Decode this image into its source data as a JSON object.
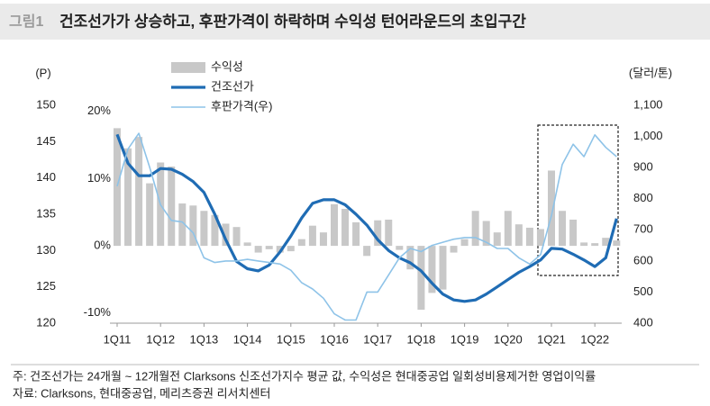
{
  "figure_label": "그림1",
  "chart_data": {
    "type": "combo",
    "title": "건조선가가 상승하고, 후판가격이 하락하며 수익성 턴어라운드의 초입구간",
    "ylabel": "(P)",
    "y2label": "(달러/톤)",
    "categories": [
      "1Q11",
      null,
      null,
      null,
      "1Q12",
      null,
      null,
      null,
      "1Q13",
      null,
      null,
      null,
      "1Q14",
      null,
      null,
      null,
      "1Q15",
      null,
      null,
      null,
      "1Q16",
      null,
      null,
      null,
      "1Q17",
      null,
      null,
      null,
      "1Q18",
      null,
      null,
      null,
      "1Q19",
      null,
      null,
      null,
      "1Q20",
      null,
      null,
      null,
      "1Q21",
      null,
      null,
      null,
      "1Q22",
      null,
      null
    ],
    "ylim": [
      120,
      150
    ],
    "yticks": [
      120,
      125,
      130,
      135,
      140,
      145,
      150
    ],
    "y2lim": [
      400,
      1100
    ],
    "y2ticks": [
      400,
      500,
      600,
      700,
      800,
      900,
      {
        "value": 1000,
        "label": "1,000"
      },
      {
        "value": 1100,
        "label": "1,100"
      }
    ],
    "y3lim": [
      -11.5,
      20.9
    ],
    "y3ticks": [
      {
        "value": -10,
        "label": "-10%"
      },
      {
        "value": 0,
        "label": "0%"
      },
      {
        "value": 10,
        "label": "10%"
      },
      {
        "value": 20,
        "label": "20%"
      }
    ],
    "series": [
      {
        "name": "수익성",
        "type": "bar",
        "axis": "y3",
        "color": "#c8c8c8",
        "values": [
          17.5,
          14.5,
          16.2,
          9.3,
          12.4,
          11.8,
          6.3,
          6.0,
          5.2,
          4.6,
          3.3,
          2.8,
          0.5,
          -1,
          -0.5,
          -1,
          -0.8,
          1,
          3,
          2,
          6.2,
          5.5,
          3.5,
          -1.5,
          3.8,
          3.9,
          -0.6,
          -3.5,
          -9.5,
          -7,
          -6.5,
          -1,
          1,
          5.2,
          3.7,
          2,
          5.2,
          3.2,
          2.7,
          2.5,
          11.2,
          5.2,
          3.9,
          0.5,
          0.4,
          1.2,
          0.8
        ]
      },
      {
        "name": "건조선가",
        "type": "line",
        "axis": "y",
        "color": "#1f6cb4",
        "values": [
          146,
          142,
          140.3,
          140.3,
          141.3,
          141.2,
          140.5,
          139.5,
          138,
          135,
          131.5,
          128.5,
          127.5,
          127.2,
          128,
          129.8,
          132,
          134.5,
          136.5,
          137,
          137,
          136.3,
          135,
          133.5,
          131.5,
          130,
          129,
          128.3,
          127.2,
          125.5,
          124,
          123.2,
          123,
          123.2,
          124,
          125,
          126,
          127,
          127.8,
          128.7,
          130.3,
          130.2,
          129.5,
          128.7,
          127.8,
          129,
          134.4
        ]
      },
      {
        "name": "후판가격(우)",
        "type": "line",
        "axis": "y2",
        "color": "#8ec3e8",
        "values": [
          840,
          960,
          1010,
          900,
          780,
          730,
          725,
          690,
          610,
          595,
          600,
          600,
          605,
          600,
          595,
          590,
          570,
          530,
          510,
          480,
          430,
          410,
          410,
          500,
          500,
          555,
          610,
          640,
          630,
          650,
          660,
          670,
          675,
          675,
          660,
          640,
          640,
          610,
          590,
          620,
          745,
          910,
          975,
          935,
          1005,
          965,
          935
        ]
      }
    ]
  },
  "notes": [
    "주: 건조선가는 24개월 ~ 12개월전 Clarksons 신조선가지수 평균 값, 수익성은 현대중공업 일회성비용제거한 영업이익률",
    "자료: Clarksons, 현대중공업, 메리츠증권 리서치센터"
  ]
}
